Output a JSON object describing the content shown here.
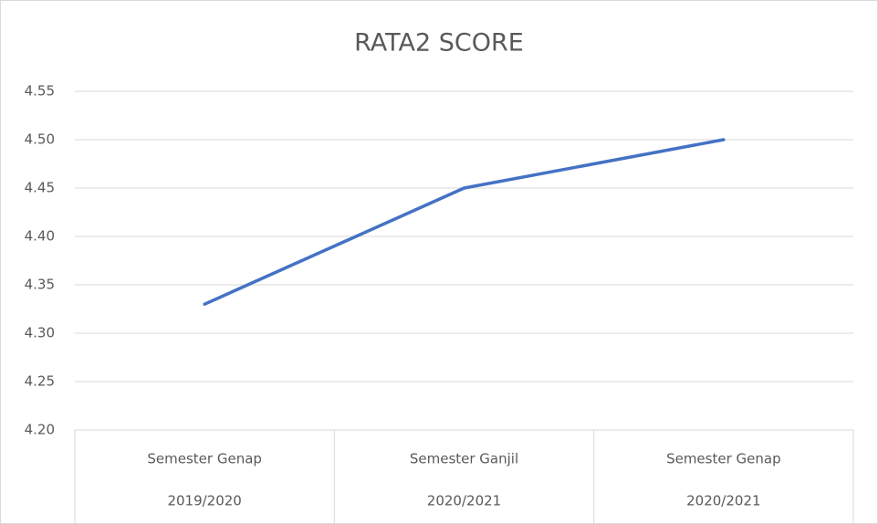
{
  "chart_data": {
    "type": "line",
    "title": "RATA2 SCORE",
    "categories": [
      [
        "Semester Genap",
        "2019/2020"
      ],
      [
        "Semester Ganjil",
        "2020/2021"
      ],
      [
        "Semester Genap",
        "2020/2021"
      ]
    ],
    "series": [
      {
        "color": "#4472c4",
        "values": [
          4.33,
          4.45,
          4.5
        ]
      }
    ],
    "ylim": [
      4.2,
      4.55
    ],
    "yticks": [
      {
        "value": 4.2,
        "label": "4.20"
      },
      4.25,
      {
        "value": 4.3,
        "label": "4.30"
      },
      4.35,
      {
        "value": 4.4,
        "label": "4.40"
      },
      4.45,
      {
        "value": 4.5,
        "label": "4.50"
      },
      4.55
    ],
    "grid": true
  }
}
